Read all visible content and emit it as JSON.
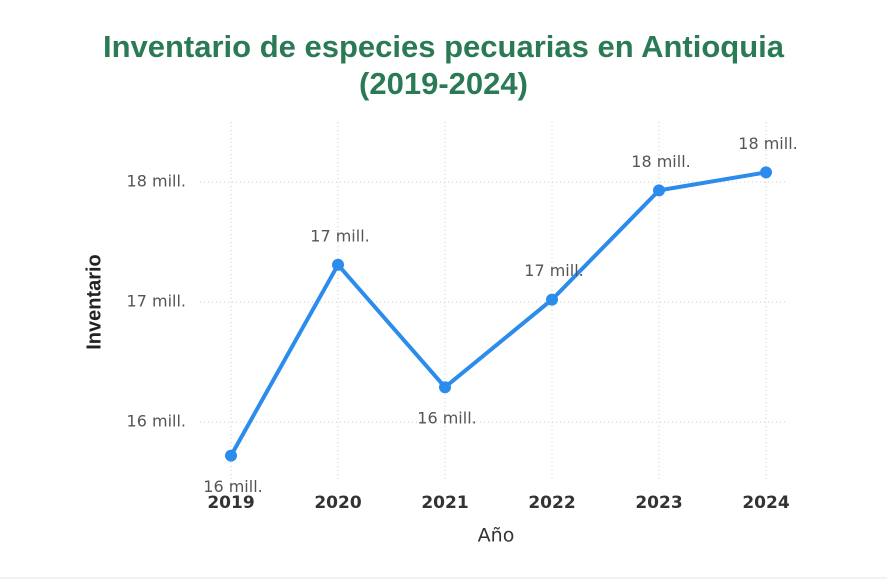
{
  "chart_data": {
    "type": "line",
    "title": "Inventario de especies pecuarias en Antioquia (2019-2024)",
    "x_label": "Año",
    "y_label": "Inventario",
    "categories": [
      "2019",
      "2020",
      "2021",
      "2022",
      "2023",
      "2024"
    ],
    "series": [
      {
        "name": "Inventario",
        "color": "#2b8cec",
        "values": [
          15720000,
          17310000,
          16290000,
          17020000,
          17930000,
          18080000
        ],
        "value_labels": [
          "16 mill.",
          "17 mill.",
          "16 mill.",
          "17 mill.",
          "18 mill.",
          "18 mill."
        ]
      }
    ],
    "ylim": [
      15500000,
      18500000
    ],
    "yticks": [
      {
        "value": 16000000,
        "label": "16 mill."
      },
      {
        "value": 17000000,
        "label": "17 mill."
      },
      {
        "value": 18000000,
        "label": "18 mill."
      }
    ],
    "grid": true
  }
}
